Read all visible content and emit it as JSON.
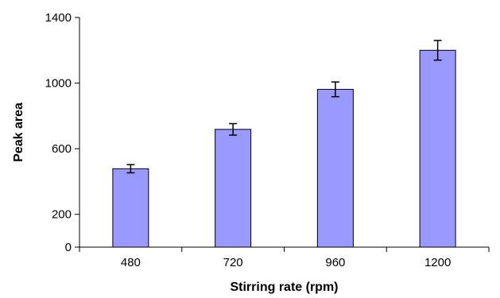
{
  "chart_data": {
    "type": "bar",
    "title": "",
    "xlabel": "Stirring rate (rpm)",
    "ylabel": "Peak area",
    "categories": [
      "480",
      "720",
      "960",
      "1200"
    ],
    "values": [
      478,
      718,
      962,
      1200
    ],
    "errors": [
      25,
      35,
      45,
      60
    ],
    "ylim": [
      0,
      1400
    ],
    "yticks": [
      "0",
      "200",
      "600",
      "1000",
      "1400"
    ],
    "ytick_values": [
      0,
      200,
      600,
      1000,
      1400
    ],
    "grid": false,
    "colors": {
      "bar_fill": "#9999ff",
      "bar_stroke": "#000000",
      "axis": "#000000"
    }
  }
}
